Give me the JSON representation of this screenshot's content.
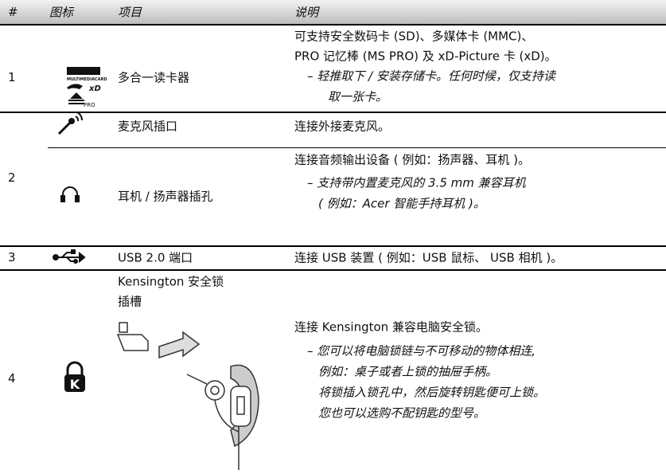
{
  "header": {
    "columns": [
      "#",
      "图标",
      "项目",
      "说明"
    ]
  },
  "rows": [
    {
      "number": "1",
      "icon_texts": [
        "MULTIMEDIACARD",
        "PRO"
      ],
      "item": [
        "多合一读卡器"
      ],
      "description": [
        "可支持安全数码卡 (SD)、多媒体卡 (MMC)、",
        "PRO 记忆棒 (MS PRO) 及 xD-Picture 卡 (xD)。"
      ],
      "note": [
        "– 轻推取下 / 安装存储卡。任何时候，仅支持读",
        "取一张卡。"
      ]
    },
    {
      "number": "2",
      "parts": [
        {
          "item": [
            "麦克风插口"
          ],
          "description": [
            "连接外接麦克风。"
          ]
        },
        {
          "item": [
            "耳机 / 扬声器插孔"
          ],
          "description": [
            "连接音频输出设备 ( 例如：扬声器、耳机 )。"
          ],
          "note": [
            "– 支持带内置麦克风的 3.5 mm 兼容耳机",
            "( 例如：Acer 智能手持耳机 )。"
          ]
        }
      ]
    },
    {
      "number": "3",
      "item": [
        "USB 2.0 端口"
      ],
      "description": [
        "连接 USB 装置 ( 例如：USB 鼠标、 USB 相机 )。"
      ]
    },
    {
      "number": "4",
      "icon_texts": [
        "K"
      ],
      "item": [
        "Kensington 安全锁",
        "插槽"
      ],
      "description": [
        "连接 Kensington 兼容电脑安全锁。"
      ],
      "note": [
        "– 您可以将电脑锁链与不可移动的物体相连,",
        "例如：桌子或者上锁的抽屉手柄。",
        "将锁插入锁孔中，然后旋转钥匙便可上锁。",
        "您也可以选购不配钥匙的型号。"
      ]
    }
  ]
}
